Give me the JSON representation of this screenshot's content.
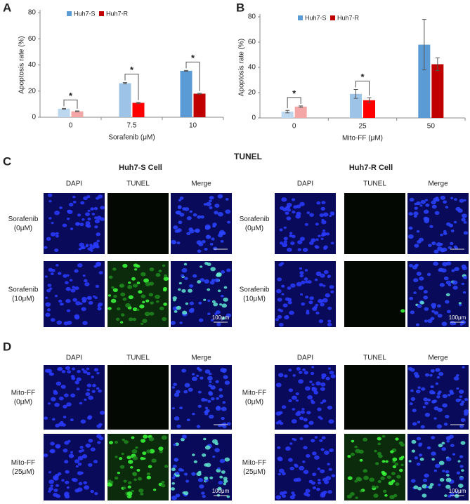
{
  "chart_data": [
    {
      "type": "bar",
      "panel_label": "A",
      "ylabel": "Apoptosis rate (%)",
      "xlabel": "Sorafenib (μM)",
      "categories": [
        "0",
        "7.5",
        "10"
      ],
      "series": [
        {
          "name": "Huh7-S",
          "color": "#5b9bd5",
          "bar_colors": [
            "#bdd7ee",
            "#9dc3e6",
            "#5b9bd5"
          ],
          "values": [
            6.5,
            26,
            35.5
          ],
          "errors": [
            0.3,
            0.5,
            0.3
          ]
        },
        {
          "name": "Huh7-R",
          "color": "#c00000",
          "bar_colors": [
            "#f4a6a6",
            "#ff0000",
            "#c00000"
          ],
          "values": [
            4.5,
            11,
            18
          ],
          "errors": [
            0.3,
            0.4,
            0.3
          ]
        }
      ],
      "significance": [
        "*",
        "*",
        "*"
      ],
      "ylim": [
        0,
        80
      ],
      "yticks": [
        0,
        20,
        40,
        60,
        80
      ]
    },
    {
      "type": "bar",
      "panel_label": "B",
      "ylabel": "Apoptosis rate (%)",
      "xlabel": "Mito-FF (μM)",
      "categories": [
        "0",
        "25",
        "50"
      ],
      "series": [
        {
          "name": "Huh7-S",
          "color": "#5b9bd5",
          "bar_colors": [
            "#bdd7ee",
            "#9dc3e6",
            "#5b9bd5"
          ],
          "values": [
            5,
            19,
            58
          ],
          "errors": [
            1,
            3.5,
            20
          ]
        },
        {
          "name": "Huh7-R",
          "color": "#c00000",
          "bar_colors": [
            "#f4a6a6",
            "#ff0000",
            "#c00000"
          ],
          "values": [
            9,
            14,
            42.5
          ],
          "errors": [
            0.5,
            2,
            5
          ]
        }
      ],
      "significance": [
        "*",
        "*",
        null
      ],
      "ylim": [
        0,
        80
      ],
      "yticks": [
        0,
        20,
        40,
        60,
        80
      ]
    }
  ],
  "panel_c": {
    "label": "C",
    "title": "TUNEL",
    "groups": [
      {
        "title": "Huh7-S Cell",
        "columns": [
          "DAPI",
          "TUNEL",
          "Merge"
        ],
        "rows": [
          [
            "Sorafenib",
            "(0μM)"
          ],
          [
            "Sorafenib",
            "(10μM)"
          ]
        ],
        "scale_bar": "100μm"
      },
      {
        "title": "Huh7-R Cell",
        "columns": [
          "DAPI",
          "TUNEL",
          "Merge"
        ],
        "rows": [
          [
            "Sorafenib",
            "(0μM)"
          ],
          [
            "Sorafenib",
            "(10μM)"
          ]
        ],
        "scale_bar": "100μm"
      }
    ]
  },
  "panel_d": {
    "label": "D",
    "groups": [
      {
        "columns": [
          "DAPI",
          "TUNEL",
          "Merge"
        ],
        "rows": [
          [
            "Mito-FF",
            "(0μM)"
          ],
          [
            "Mito-FF",
            "(25μM)"
          ]
        ],
        "scale_bar": "100μm"
      },
      {
        "columns": [
          "DAPI",
          "TUNEL",
          "Merge"
        ],
        "rows": [
          [
            "Mito-FF",
            "(0μM)"
          ],
          [
            "Mito-FF",
            "(25μM)"
          ]
        ],
        "scale_bar": "100μm"
      }
    ]
  }
}
